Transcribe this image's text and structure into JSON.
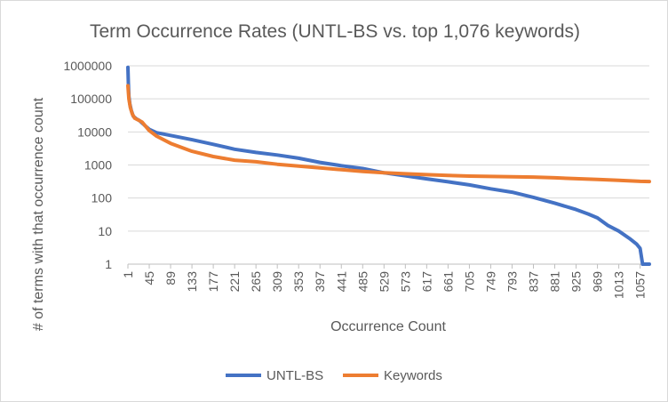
{
  "chart_data": {
    "type": "line",
    "title": "Term Occurrence Rates (UNTL-BS vs. top 1,076 keywords)",
    "xlabel": "Occurrence Count",
    "ylabel": "# of terms with that occurrence count",
    "y_scale": "log",
    "ylim": [
      1,
      1000000
    ],
    "y_ticks": [
      "1",
      "10",
      "100",
      "1000",
      "10000",
      "100000",
      "1000000"
    ],
    "x_ticks": [
      "1",
      "45",
      "89",
      "133",
      "177",
      "221",
      "265",
      "309",
      "353",
      "397",
      "441",
      "485",
      "529",
      "573",
      "617",
      "661",
      "705",
      "749",
      "793",
      "837",
      "881",
      "925",
      "969",
      "1013",
      "1057"
    ],
    "xlim": [
      1,
      1076
    ],
    "grid": "horizontal",
    "legend_position": "bottom",
    "series": [
      {
        "name": "UNTL-BS",
        "color": "#4472c4",
        "points": [
          [
            1,
            900000
          ],
          [
            2,
            300000
          ],
          [
            3,
            120000
          ],
          [
            5,
            70000
          ],
          [
            8,
            45000
          ],
          [
            12,
            30000
          ],
          [
            18,
            25000
          ],
          [
            25,
            22000
          ],
          [
            35,
            16000
          ],
          [
            45,
            12000
          ],
          [
            60,
            9500
          ],
          [
            89,
            7800
          ],
          [
            133,
            5800
          ],
          [
            177,
            4200
          ],
          [
            221,
            3000
          ],
          [
            265,
            2400
          ],
          [
            309,
            2000
          ],
          [
            353,
            1600
          ],
          [
            397,
            1200
          ],
          [
            441,
            950
          ],
          [
            485,
            780
          ],
          [
            529,
            580
          ],
          [
            573,
            470
          ],
          [
            617,
            380
          ],
          [
            661,
            310
          ],
          [
            705,
            250
          ],
          [
            749,
            190
          ],
          [
            793,
            150
          ],
          [
            837,
            105
          ],
          [
            881,
            70
          ],
          [
            925,
            45
          ],
          [
            950,
            33
          ],
          [
            969,
            25
          ],
          [
            990,
            15
          ],
          [
            1013,
            10
          ],
          [
            1035,
            6
          ],
          [
            1050,
            4
          ],
          [
            1057,
            3
          ],
          [
            1062,
            1
          ],
          [
            1076,
            1
          ]
        ]
      },
      {
        "name": "Keywords",
        "color": "#ed7d31",
        "points": [
          [
            1,
            250000
          ],
          [
            3,
            100000
          ],
          [
            6,
            55000
          ],
          [
            10,
            35000
          ],
          [
            15,
            26000
          ],
          [
            22,
            23000
          ],
          [
            30,
            20000
          ],
          [
            45,
            11000
          ],
          [
            60,
            7500
          ],
          [
            89,
            4500
          ],
          [
            133,
            2600
          ],
          [
            177,
            1800
          ],
          [
            221,
            1400
          ],
          [
            265,
            1250
          ],
          [
            309,
            1050
          ],
          [
            353,
            920
          ],
          [
            397,
            820
          ],
          [
            441,
            720
          ],
          [
            485,
            640
          ],
          [
            529,
            580
          ],
          [
            573,
            540
          ],
          [
            617,
            510
          ],
          [
            661,
            480
          ],
          [
            705,
            460
          ],
          [
            749,
            450
          ],
          [
            793,
            440
          ],
          [
            837,
            430
          ],
          [
            881,
            410
          ],
          [
            925,
            385
          ],
          [
            969,
            365
          ],
          [
            1013,
            345
          ],
          [
            1057,
            320
          ],
          [
            1076,
            315
          ]
        ]
      }
    ]
  }
}
